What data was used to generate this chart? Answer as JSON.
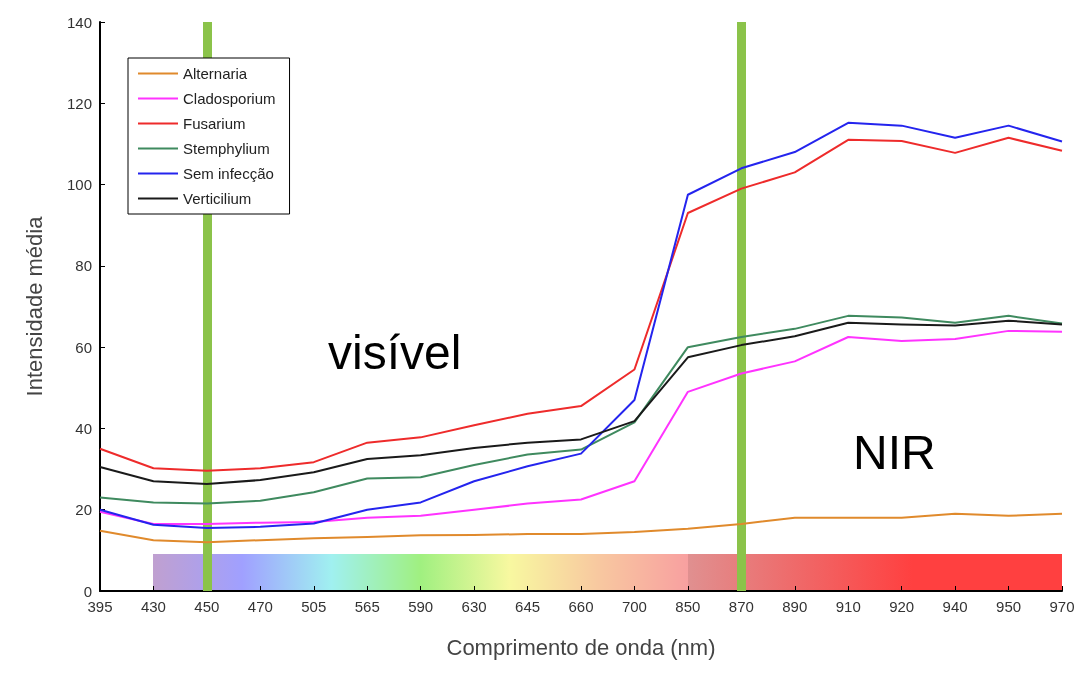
{
  "chart_data": {
    "type": "line",
    "xlabel": "Comprimento de onda (nm)",
    "ylabel": "Intensidade média",
    "categories": [
      "395",
      "430",
      "450",
      "470",
      "505",
      "565",
      "590",
      "630",
      "645",
      "660",
      "700",
      "850",
      "870",
      "890",
      "910",
      "920",
      "940",
      "950",
      "970"
    ],
    "ylim": [
      0,
      140
    ],
    "yticks": [
      0,
      20,
      40,
      60,
      80,
      100,
      120,
      140
    ],
    "grid": false,
    "legend": "top left",
    "marker": "none",
    "line_style": "solid",
    "annotations": [
      "visível",
      "NIR"
    ],
    "ref_lines": [
      {
        "axis": "x",
        "value": "450",
        "color": "#8bc34a"
      },
      {
        "axis": "x",
        "value": "870",
        "color": "#8bc34a"
      }
    ],
    "series": [
      {
        "name": "Alternaria",
        "color": "#e08a2c",
        "values": [
          14.8,
          12.5,
          12,
          12.5,
          13,
          13.3,
          13.7,
          13.8,
          14,
          14,
          14.5,
          15.3,
          16.5,
          18,
          18,
          18,
          19,
          18.5,
          19
        ]
      },
      {
        "name": "Cladosporium",
        "color": "#ff33ff",
        "values": [
          19.5,
          16.5,
          16.5,
          16.8,
          17,
          18,
          18.5,
          20,
          21.5,
          22.5,
          27,
          49,
          53.5,
          56.5,
          62.5,
          61.5,
          62,
          64,
          63.8
        ]
      },
      {
        "name": "Fusarium",
        "color": "#ee2b2b",
        "values": [
          35,
          30.2,
          29.6,
          30.2,
          31.7,
          36.5,
          37.8,
          40.8,
          43.6,
          45.5,
          54.5,
          93,
          99,
          103,
          111,
          110.7,
          107.8,
          111.5,
          108.3
        ]
      },
      {
        "name": "Stemphylium",
        "color": "#3f8a5f",
        "values": [
          23,
          21.8,
          21.5,
          22.2,
          24.3,
          27.7,
          28,
          31,
          33.6,
          34.8,
          41.5,
          60,
          62.5,
          64.5,
          67.7,
          67.3,
          66,
          67.7,
          65.8
        ]
      },
      {
        "name": "Sem infecção",
        "color": "#2424ee",
        "values": [
          20,
          16.3,
          15.5,
          15.8,
          16.6,
          20,
          21.8,
          27,
          30.7,
          33.8,
          47,
          97.5,
          104,
          108,
          115.2,
          114.5,
          111.5,
          114.5,
          110.6
        ]
      },
      {
        "name": "Verticilium",
        "color": "#1a1a1a",
        "values": [
          30.5,
          27,
          26.3,
          27.3,
          29.2,
          32.5,
          33.4,
          35.2,
          36.5,
          37.3,
          41.8,
          57.5,
          60.5,
          62.7,
          66,
          65.6,
          65.3,
          66.5,
          65.6
        ]
      }
    ]
  }
}
